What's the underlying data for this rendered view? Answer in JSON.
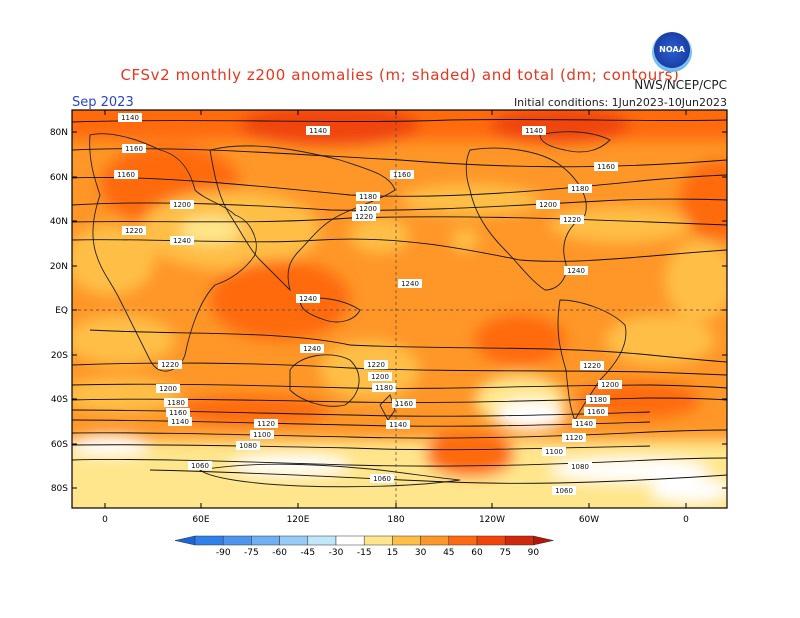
{
  "title": "CFSv2 monthly z200 anomalies (m; shaded) and total (dm; contours)",
  "title_visible": "CFSv2 monthly z200 anomalies (m; shaded) and total (dm; contours)",
  "month": "Sep 2023",
  "agency": "NWS/NCEP/CPC",
  "logo_text": "NOAA",
  "initial_conditions": "Initial conditions: 1Jun2023-10Jun2023",
  "lat_labels": [
    "80N",
    "60N",
    "40N",
    "20N",
    "EQ",
    "20S",
    "40S",
    "60S",
    "80S"
  ],
  "lon_labels": [
    "0",
    "60E",
    "120E",
    "180",
    "120W",
    "60W",
    "0"
  ],
  "colorbar": {
    "labels": [
      "-90",
      "-75",
      "-60",
      "-45",
      "-30",
      "-15",
      "15",
      "30",
      "45",
      "60",
      "75",
      "90"
    ],
    "colors": [
      "#1c64d8",
      "#2f80ea",
      "#4d96f0",
      "#6fb0f3",
      "#96cbf6",
      "#c0e6fa",
      "#ffffff",
      "#ffe68c",
      "#ffbf47",
      "#ff9628",
      "#ff6a10",
      "#f04408",
      "#d0280a",
      "#b21606"
    ]
  },
  "contour_labels": [
    {
      "text": "1140"
    },
    {
      "text": "1160"
    },
    {
      "text": "1180"
    },
    {
      "text": "1200"
    },
    {
      "text": "1220"
    },
    {
      "text": "1240"
    },
    {
      "text": "1120"
    },
    {
      "text": "1100"
    },
    {
      "text": "1080"
    },
    {
      "text": "1060"
    }
  ]
}
